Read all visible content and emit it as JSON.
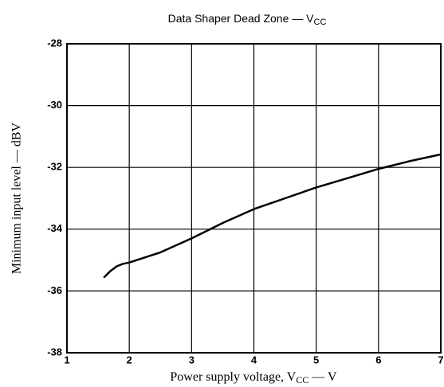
{
  "chart_data": {
    "type": "line",
    "title": "Data Shaper Dead Zone — V",
    "title_subscript": "CC",
    "x_label": "Power supply voltage, V",
    "x_label_subscript": "CC",
    "x_label_unit": " — V",
    "y_label": "Minimum input level — dBV",
    "x": [
      1.6,
      1.7,
      1.8,
      1.9,
      2,
      2.5,
      3,
      3.5,
      4,
      4.5,
      5,
      5.5,
      6,
      6.5,
      7
    ],
    "series": [
      {
        "color": "#000000",
        "values": [
          -35.55,
          -35.35,
          -35.2,
          -35.12,
          -35.08,
          -34.75,
          -34.3,
          -33.8,
          -33.35,
          -33.0,
          -32.65,
          -32.35,
          -32.05,
          -31.8,
          -31.58
        ]
      }
    ],
    "xlim": [
      1,
      7
    ],
    "xticks": [
      1,
      2,
      3,
      4,
      5,
      6,
      7
    ],
    "ylim": [
      -38,
      -28
    ],
    "yticks": [
      -38,
      -36,
      -34,
      -32,
      -30,
      -28
    ],
    "grid": true
  }
}
